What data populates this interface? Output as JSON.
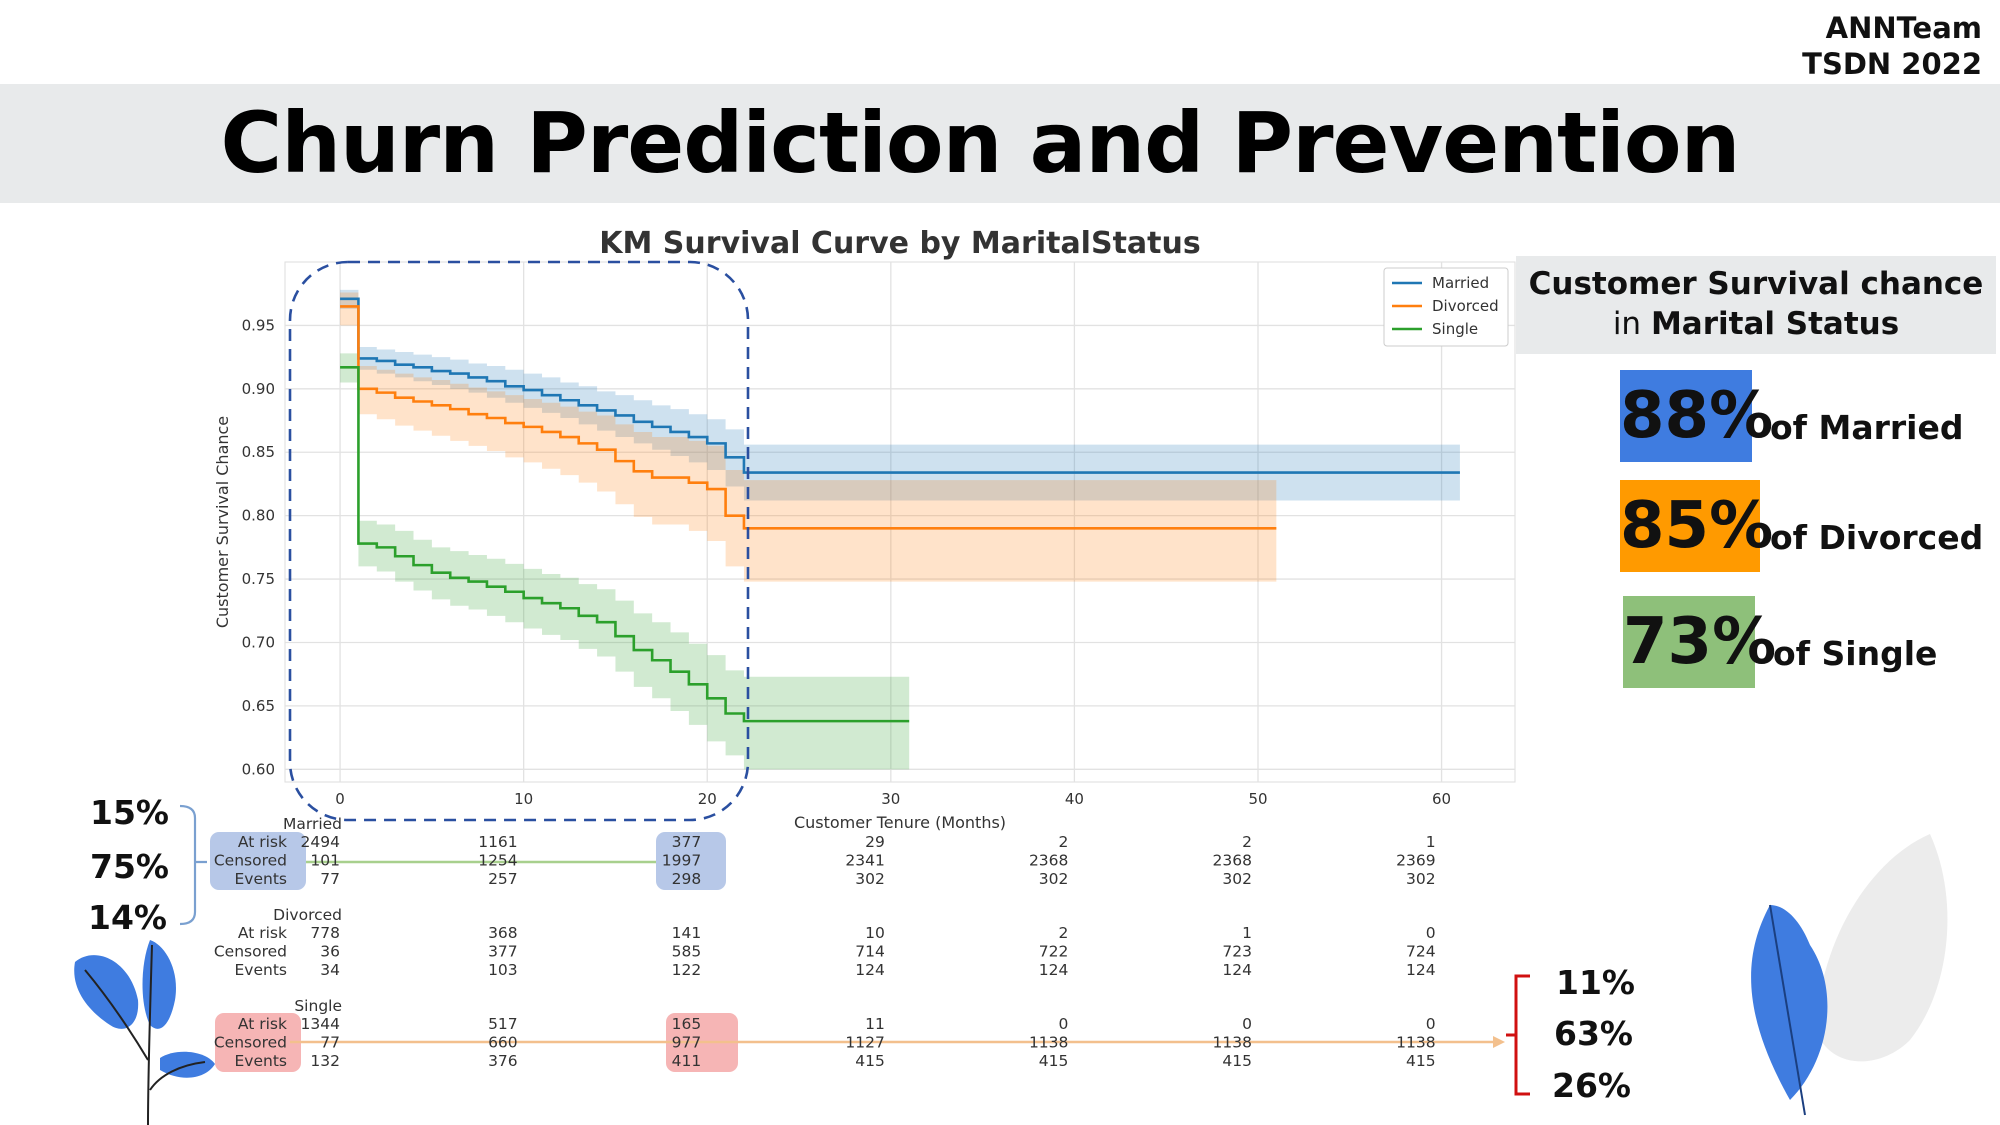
{
  "brand": {
    "line1": "ANNTeam",
    "line2": "TSDN 2022"
  },
  "page_title": "Churn Prediction and Prevention",
  "side_panel": {
    "heading_line1": "Customer Survival chance",
    "heading_line2_prefix": "in",
    "heading_line2_bold": "Marital Status",
    "stats": [
      {
        "value": "88%",
        "label": "of Married",
        "color": "#3f7ce0"
      },
      {
        "value": "85%",
        "label": "of Divorced",
        "color": "#ff9a00"
      },
      {
        "value": "73%",
        "label": "of Single",
        "color": "#8ec07a"
      }
    ]
  },
  "left_callout": [
    "15%",
    "75%",
    "14%"
  ],
  "right_callout": [
    "11%",
    "63%",
    "26%"
  ],
  "colors": {
    "married": "#1f77b4",
    "divorced": "#ff7f0e",
    "single": "#2ca02c",
    "highlight_blue": "#b7c8e8",
    "highlight_red": "#f6b5b5",
    "dashed_box": "#2a4fa0",
    "bracket_red": "#d01010",
    "bracket_blue": "#7aa0d0"
  },
  "chart_data": {
    "type": "line",
    "title": "KM Survival Curve by MaritalStatus",
    "xlabel": "Customer Tenure (Months)",
    "ylabel": "Customer Survival Chance",
    "xlim": [
      -3,
      64
    ],
    "ylim": [
      0.59,
      1.0
    ],
    "xticks": [
      0,
      10,
      20,
      30,
      40,
      50,
      60
    ],
    "yticks": [
      0.6,
      0.65,
      0.7,
      0.75,
      0.8,
      0.85,
      0.9,
      0.95
    ],
    "grid": true,
    "legend_position": "top-right",
    "step": true,
    "series": [
      {
        "name": "Married",
        "x": [
          0,
          1,
          2,
          3,
          4,
          5,
          6,
          7,
          8,
          9,
          10,
          11,
          12,
          13,
          14,
          15,
          16,
          17,
          18,
          19,
          20,
          21,
          22,
          61
        ],
        "y": [
          0.971,
          0.924,
          0.922,
          0.919,
          0.917,
          0.914,
          0.912,
          0.909,
          0.906,
          0.902,
          0.899,
          0.895,
          0.891,
          0.887,
          0.883,
          0.879,
          0.874,
          0.87,
          0.866,
          0.862,
          0.857,
          0.846,
          0.834,
          0.834
        ],
        "lo": [
          0.963,
          0.915,
          0.912,
          0.909,
          0.906,
          0.903,
          0.9,
          0.897,
          0.893,
          0.889,
          0.885,
          0.881,
          0.877,
          0.872,
          0.867,
          0.862,
          0.857,
          0.852,
          0.847,
          0.842,
          0.836,
          0.823,
          0.812,
          0.812
        ],
        "hi": [
          0.978,
          0.933,
          0.931,
          0.929,
          0.927,
          0.925,
          0.923,
          0.92,
          0.918,
          0.915,
          0.912,
          0.909,
          0.905,
          0.902,
          0.898,
          0.895,
          0.891,
          0.887,
          0.884,
          0.88,
          0.876,
          0.868,
          0.856,
          0.856
        ]
      },
      {
        "name": "Divorced",
        "x": [
          0,
          1,
          2,
          3,
          4,
          5,
          6,
          7,
          8,
          9,
          10,
          11,
          12,
          13,
          14,
          15,
          16,
          17,
          18,
          19,
          20,
          21,
          22,
          51
        ],
        "y": [
          0.965,
          0.9,
          0.897,
          0.893,
          0.89,
          0.887,
          0.884,
          0.88,
          0.877,
          0.873,
          0.87,
          0.866,
          0.862,
          0.857,
          0.852,
          0.843,
          0.835,
          0.83,
          0.83,
          0.826,
          0.821,
          0.8,
          0.79,
          0.79
        ],
        "lo": [
          0.95,
          0.88,
          0.876,
          0.871,
          0.867,
          0.863,
          0.859,
          0.855,
          0.851,
          0.846,
          0.842,
          0.837,
          0.832,
          0.826,
          0.819,
          0.809,
          0.799,
          0.793,
          0.793,
          0.788,
          0.78,
          0.76,
          0.748,
          0.748
        ],
        "hi": [
          0.976,
          0.918,
          0.915,
          0.912,
          0.909,
          0.907,
          0.904,
          0.901,
          0.898,
          0.895,
          0.892,
          0.889,
          0.886,
          0.882,
          0.879,
          0.872,
          0.866,
          0.862,
          0.862,
          0.859,
          0.855,
          0.836,
          0.828,
          0.828
        ]
      },
      {
        "name": "Single",
        "x": [
          0,
          1,
          2,
          3,
          4,
          5,
          6,
          7,
          8,
          9,
          10,
          11,
          12,
          13,
          14,
          15,
          16,
          17,
          18,
          19,
          20,
          21,
          22,
          31
        ],
        "y": [
          0.917,
          0.778,
          0.775,
          0.768,
          0.761,
          0.755,
          0.751,
          0.748,
          0.744,
          0.74,
          0.735,
          0.731,
          0.727,
          0.721,
          0.716,
          0.705,
          0.694,
          0.686,
          0.677,
          0.667,
          0.656,
          0.644,
          0.638,
          0.638
        ],
        "lo": [
          0.905,
          0.76,
          0.756,
          0.748,
          0.741,
          0.734,
          0.729,
          0.726,
          0.721,
          0.716,
          0.711,
          0.706,
          0.702,
          0.695,
          0.689,
          0.677,
          0.665,
          0.656,
          0.646,
          0.635,
          0.622,
          0.611,
          0.6,
          0.6
        ],
        "hi": [
          0.928,
          0.796,
          0.793,
          0.788,
          0.781,
          0.775,
          0.772,
          0.769,
          0.766,
          0.762,
          0.758,
          0.754,
          0.751,
          0.746,
          0.742,
          0.733,
          0.723,
          0.716,
          0.708,
          0.699,
          0.69,
          0.678,
          0.673,
          0.673
        ]
      }
    ],
    "at_risk_table": {
      "time_points": [
        0,
        10,
        20,
        30,
        40,
        50,
        60
      ],
      "groups": [
        {
          "name": "Married",
          "rows": [
            {
              "label": "At risk",
              "values": [
                "2494",
                "1161",
                "377",
                "29",
                "2",
                "2",
                "1"
              ]
            },
            {
              "label": "Censored",
              "values": [
                "101",
                "1254",
                "1997",
                "2341",
                "2368",
                "2368",
                "2369"
              ]
            },
            {
              "label": "Events",
              "values": [
                "77",
                "257",
                "298",
                "302",
                "302",
                "302",
                "302"
              ]
            }
          ]
        },
        {
          "name": "Divorced",
          "rows": [
            {
              "label": "At risk",
              "values": [
                "778",
                "368",
                "141",
                "10",
                "2",
                "1",
                "0"
              ]
            },
            {
              "label": "Censored",
              "values": [
                "36",
                "377",
                "585",
                "714",
                "722",
                "723",
                "724"
              ]
            },
            {
              "label": "Events",
              "values": [
                "34",
                "103",
                "122",
                "124",
                "124",
                "124",
                "124"
              ]
            }
          ]
        },
        {
          "name": "Single",
          "rows": [
            {
              "label": "At risk",
              "values": [
                "1344",
                "517",
                "165",
                "11",
                "0",
                "0",
                "0"
              ]
            },
            {
              "label": "Censored",
              "values": [
                "77",
                "660",
                "977",
                "1127",
                "1138",
                "1138",
                "1138"
              ]
            },
            {
              "label": "Events",
              "values": [
                "132",
                "376",
                "411",
                "415",
                "415",
                "415",
                "415"
              ]
            }
          ]
        }
      ]
    }
  }
}
